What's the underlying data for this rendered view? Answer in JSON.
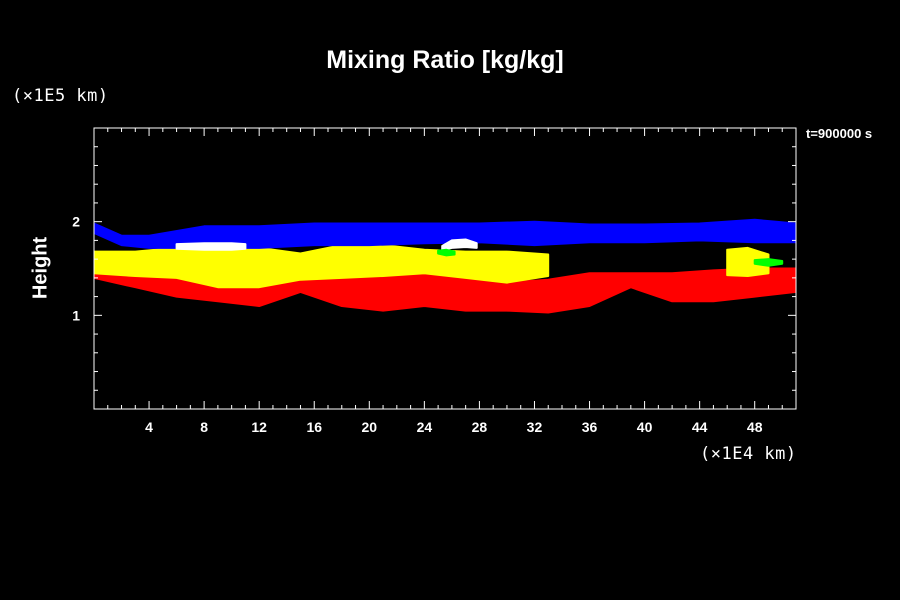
{
  "chart_data": {
    "type": "heatmap",
    "title": "Mixing Ratio [kg/kg]",
    "ylabel": "Height",
    "y_unit": "(×1E5 km)",
    "x_unit": "(×1E4 km)",
    "time_label": "t=900000 s",
    "xlim": [
      0,
      51
    ],
    "ylim": [
      0,
      3
    ],
    "x_ticks": [
      4,
      8,
      12,
      16,
      20,
      24,
      28,
      32,
      36,
      40,
      44,
      48
    ],
    "y_ticks": [
      1,
      2
    ],
    "grid": false,
    "background": "#000000",
    "layers": [
      {
        "color": "#ff0000",
        "bands": [
          {
            "x": 0.0,
            "y0": 1.4,
            "y1": 1.58
          },
          {
            "x": 3.0,
            "y0": 1.3,
            "y1": 1.6
          },
          {
            "x": 6.0,
            "y0": 1.2,
            "y1": 1.55
          },
          {
            "x": 9.0,
            "y0": 1.15,
            "y1": 1.45
          },
          {
            "x": 12.0,
            "y0": 1.1,
            "y1": 1.4
          },
          {
            "x": 15.0,
            "y0": 1.25,
            "y1": 1.45
          },
          {
            "x": 18.0,
            "y0": 1.1,
            "y1": 1.45
          },
          {
            "x": 21.0,
            "y0": 1.05,
            "y1": 1.45
          },
          {
            "x": 24.0,
            "y0": 1.1,
            "y1": 1.5
          },
          {
            "x": 27.0,
            "y0": 1.05,
            "y1": 1.45
          },
          {
            "x": 30.0,
            "y0": 1.05,
            "y1": 1.35
          },
          {
            "x": 33.0,
            "y0": 1.03,
            "y1": 1.38
          },
          {
            "x": 36.0,
            "y0": 1.1,
            "y1": 1.45
          },
          {
            "x": 39.0,
            "y0": 1.3,
            "y1": 1.45
          },
          {
            "x": 42.0,
            "y0": 1.15,
            "y1": 1.45
          },
          {
            "x": 45.0,
            "y0": 1.15,
            "y1": 1.48
          },
          {
            "x": 48.0,
            "y0": 1.2,
            "y1": 1.5
          },
          {
            "x": 51.0,
            "y0": 1.25,
            "y1": 1.5
          }
        ]
      },
      {
        "color": "#ffff00",
        "bands": [
          {
            "x": 0.0,
            "y0": 1.45,
            "y1": 1.68
          },
          {
            "x": 3.0,
            "y0": 1.42,
            "y1": 1.68
          },
          {
            "x": 6.0,
            "y0": 1.4,
            "y1": 1.72
          },
          {
            "x": 9.0,
            "y0": 1.3,
            "y1": 1.72
          },
          {
            "x": 12.0,
            "y0": 1.3,
            "y1": 1.72
          },
          {
            "x": 15.0,
            "y0": 1.38,
            "y1": 1.66
          },
          {
            "x": 18.0,
            "y0": 1.4,
            "y1": 1.75
          },
          {
            "x": 21.0,
            "y0": 1.42,
            "y1": 1.75
          },
          {
            "x": 24.0,
            "y0": 1.45,
            "y1": 1.7
          },
          {
            "x": 27.0,
            "y0": 1.4,
            "y1": 1.68
          },
          {
            "x": 30.0,
            "y0": 1.35,
            "y1": 1.68
          },
          {
            "x": 33.0,
            "y0": 1.42,
            "y1": 1.65
          }
        ]
      },
      {
        "color": "#ffff00",
        "bands": [
          {
            "x": 46.0,
            "y0": 1.43,
            "y1": 1.7
          },
          {
            "x": 47.5,
            "y0": 1.42,
            "y1": 1.72
          },
          {
            "x": 49.0,
            "y0": 1.45,
            "y1": 1.65
          }
        ]
      },
      {
        "color": "#0000ff",
        "bands": [
          {
            "x": 0.0,
            "y0": 1.88,
            "y1": 1.98
          },
          {
            "x": 2.0,
            "y0": 1.75,
            "y1": 1.85
          },
          {
            "x": 4.0,
            "y0": 1.72,
            "y1": 1.85
          },
          {
            "x": 8.0,
            "y0": 1.72,
            "y1": 1.95
          },
          {
            "x": 12.0,
            "y0": 1.72,
            "y1": 1.95
          },
          {
            "x": 16.0,
            "y0": 1.75,
            "y1": 1.98
          },
          {
            "x": 20.0,
            "y0": 1.75,
            "y1": 1.98
          },
          {
            "x": 24.0,
            "y0": 1.77,
            "y1": 1.98
          },
          {
            "x": 28.0,
            "y0": 1.78,
            "y1": 1.98
          },
          {
            "x": 32.0,
            "y0": 1.75,
            "y1": 2.0
          },
          {
            "x": 36.0,
            "y0": 1.78,
            "y1": 1.97
          },
          {
            "x": 40.0,
            "y0": 1.78,
            "y1": 1.97
          },
          {
            "x": 44.0,
            "y0": 1.8,
            "y1": 1.98
          },
          {
            "x": 48.0,
            "y0": 1.78,
            "y1": 2.02
          },
          {
            "x": 51.0,
            "y0": 1.78,
            "y1": 1.98
          }
        ]
      },
      {
        "color": "#ffffff",
        "bands": [
          {
            "x": 6.0,
            "y0": 1.71,
            "y1": 1.76
          },
          {
            "x": 8.0,
            "y0": 1.7,
            "y1": 1.77
          },
          {
            "x": 10.0,
            "y0": 1.7,
            "y1": 1.77
          },
          {
            "x": 11.0,
            "y0": 1.71,
            "y1": 1.76
          }
        ]
      },
      {
        "color": "#ffffff",
        "bands": [
          {
            "x": 25.3,
            "y0": 1.7,
            "y1": 1.74
          },
          {
            "x": 26.0,
            "y0": 1.72,
            "y1": 1.8
          },
          {
            "x": 27.0,
            "y0": 1.73,
            "y1": 1.81
          },
          {
            "x": 27.8,
            "y0": 1.72,
            "y1": 1.77
          }
        ]
      },
      {
        "color": "#00ff00",
        "bands": [
          {
            "x": 25.0,
            "y0": 1.66,
            "y1": 1.69
          },
          {
            "x": 25.6,
            "y0": 1.64,
            "y1": 1.7
          },
          {
            "x": 26.2,
            "y0": 1.65,
            "y1": 1.68
          }
        ]
      },
      {
        "color": "#00ff00",
        "bands": [
          {
            "x": 48.0,
            "y0": 1.55,
            "y1": 1.59
          },
          {
            "x": 49.0,
            "y0": 1.53,
            "y1": 1.6
          },
          {
            "x": 50.0,
            "y0": 1.55,
            "y1": 1.58
          }
        ]
      }
    ]
  }
}
